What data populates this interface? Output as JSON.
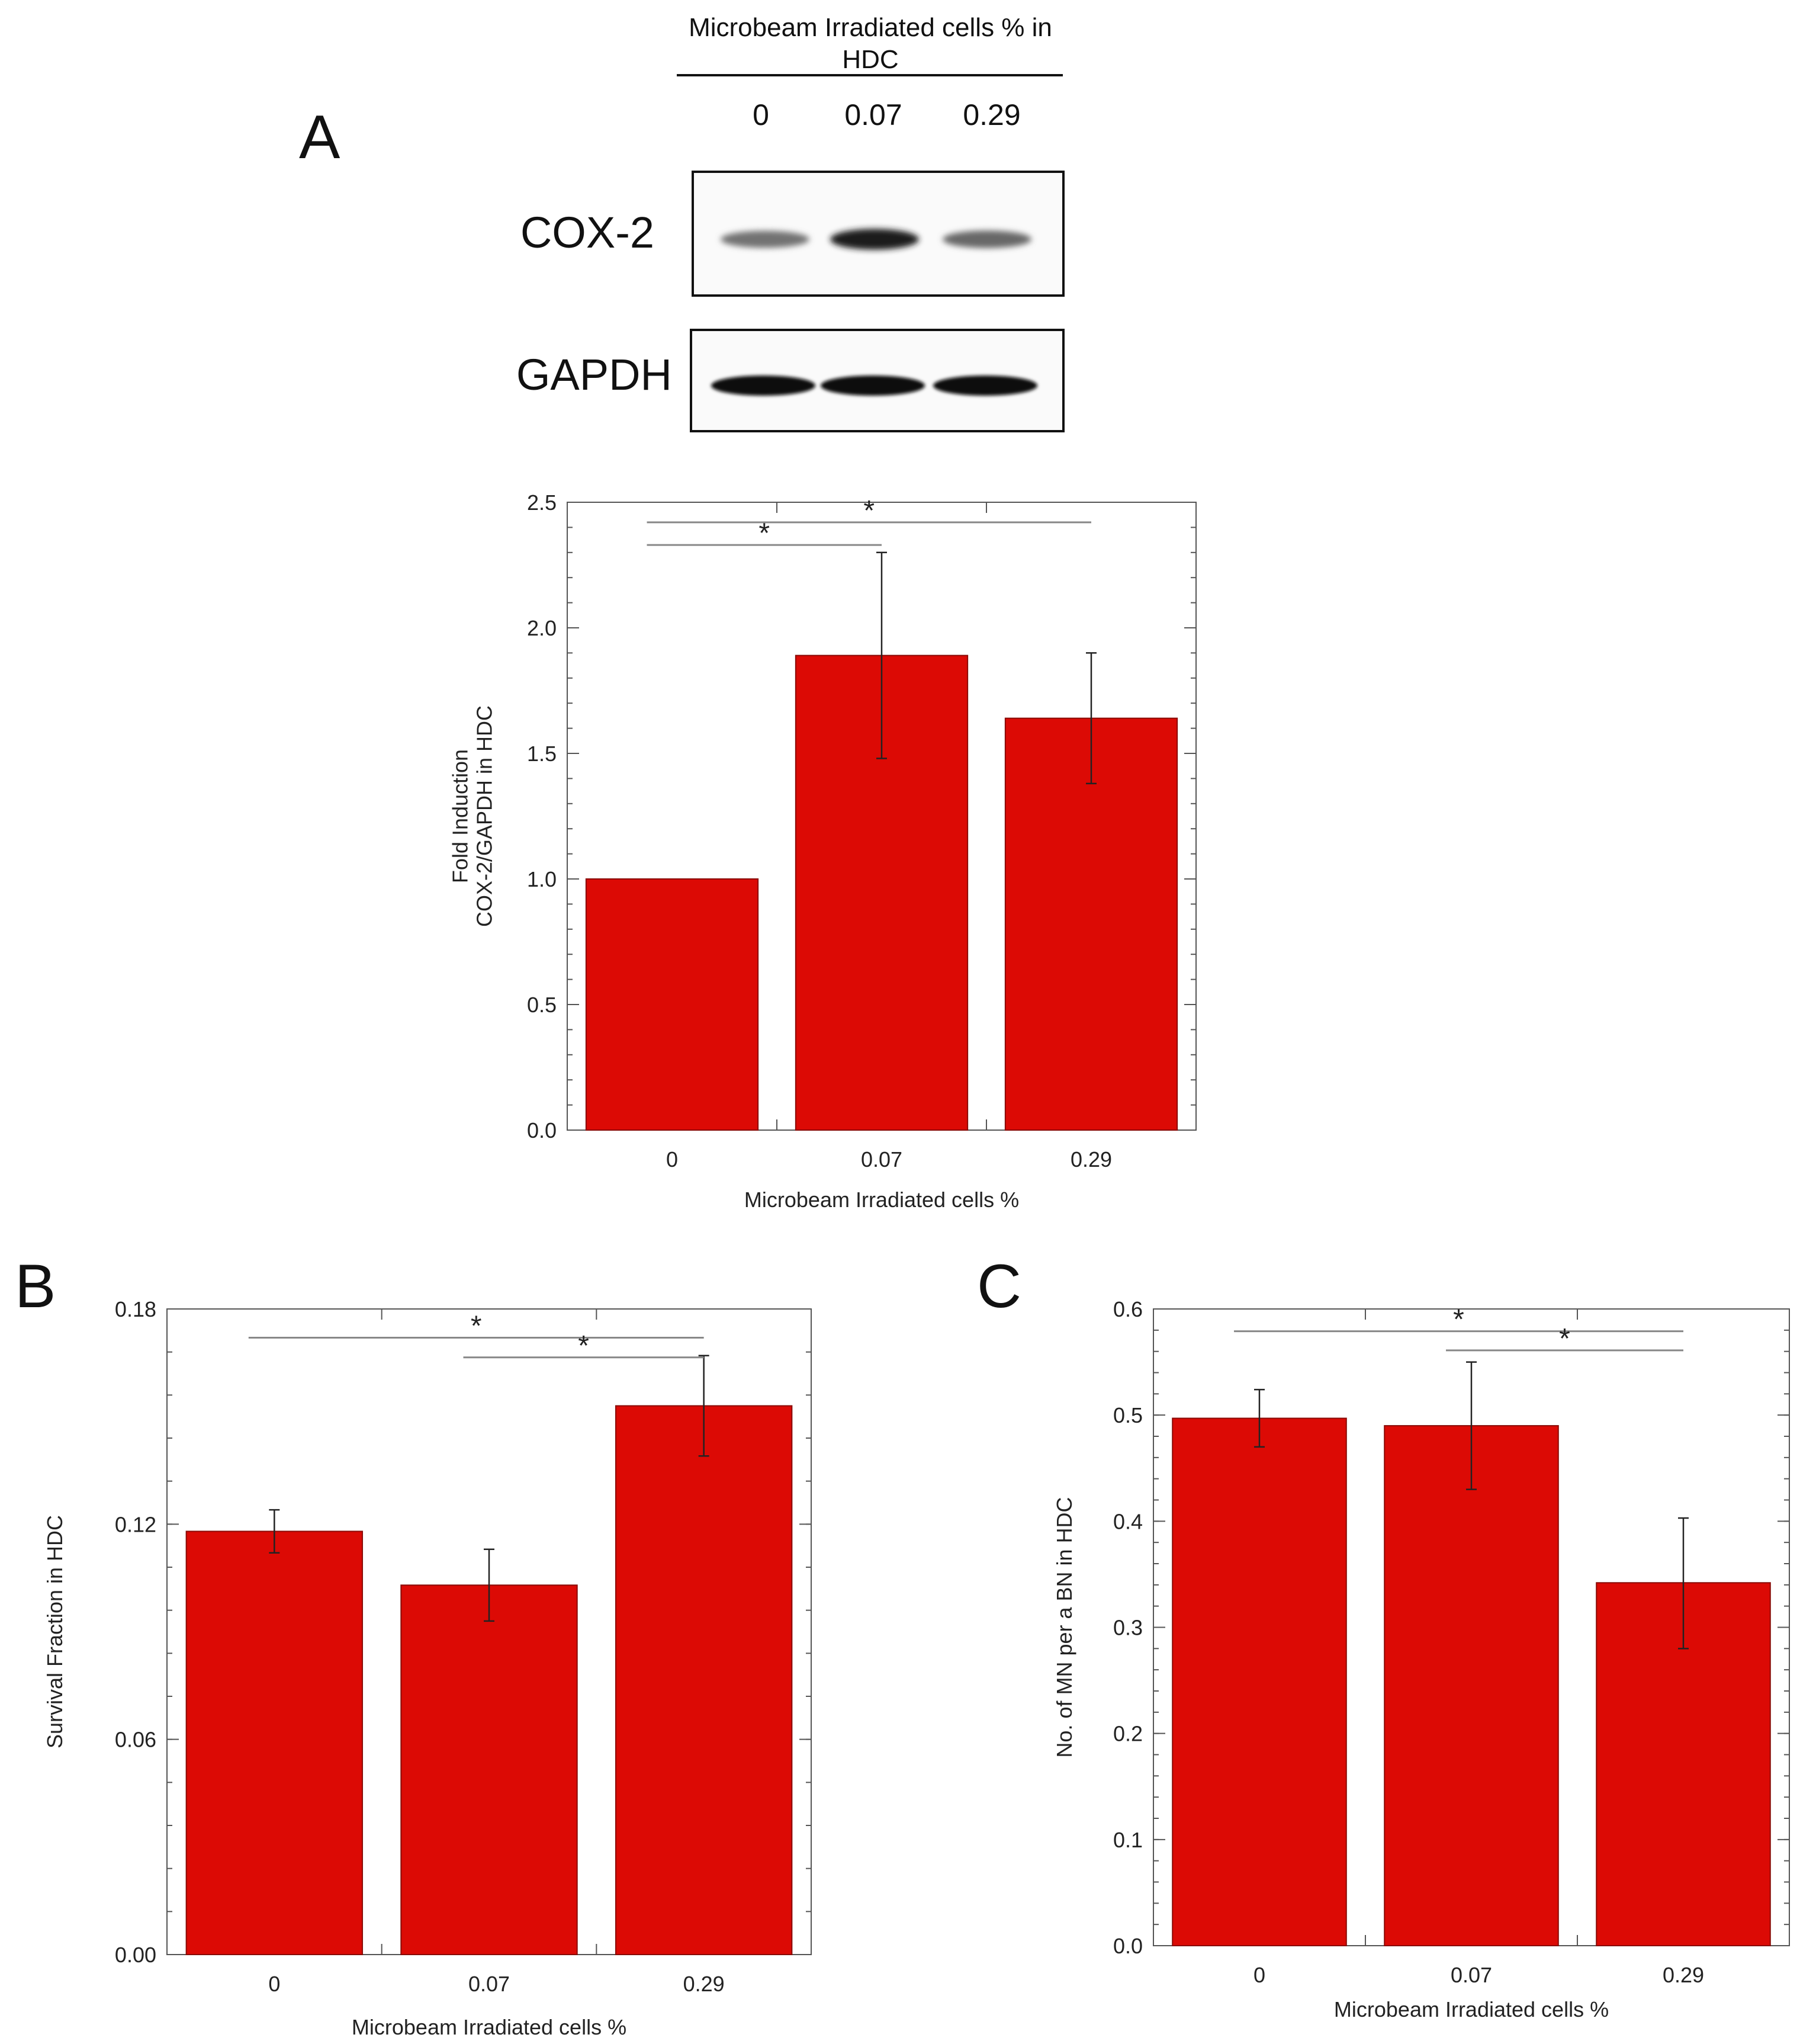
{
  "panels": {
    "a": "A",
    "b": "B",
    "c": "C"
  },
  "blot": {
    "header": "Microbeam Irradiated  cells % in HDC",
    "lanes": [
      "0",
      "0.07",
      "0.29"
    ],
    "bands": [
      "COX-2",
      "GAPDH"
    ],
    "cox2_intensity": [
      0.55,
      0.95,
      0.6
    ],
    "gapdh_intensity": [
      1.0,
      1.0,
      1.0
    ]
  },
  "chart_data": [
    {
      "id": "A",
      "type": "bar",
      "categories": [
        "0",
        "0.07",
        "0.29"
      ],
      "values": [
        1.0,
        1.89,
        1.64
      ],
      "errors_upper": [
        1.0,
        2.3,
        1.9
      ],
      "errors_lower": [
        1.0,
        1.48,
        1.38
      ],
      "xlabel": "Microbeam Irradiated cells %",
      "ylabel_lines": [
        "Fold Induction",
        "COX-2/GAPDH in HDC"
      ],
      "ylim": [
        0,
        2.5
      ],
      "yticks": [
        0.0,
        0.5,
        1.0,
        1.5,
        2.0,
        2.5
      ],
      "ytick_labels": [
        "0.0",
        "0.5",
        "1.0",
        "1.5",
        "2.0",
        "2.5"
      ],
      "bar_color": "#dc0a05",
      "significance": [
        {
          "from": 0,
          "to": 1,
          "y": 2.33,
          "label": "*"
        },
        {
          "from": 0,
          "to": 2,
          "y": 2.42,
          "label": "*"
        }
      ]
    },
    {
      "id": "B",
      "type": "bar",
      "categories": [
        "0",
        "0.07",
        "0.29"
      ],
      "values": [
        0.118,
        0.103,
        0.153
      ],
      "errors_upper": [
        0.124,
        0.113,
        0.167
      ],
      "errors_lower": [
        0.112,
        0.093,
        0.139
      ],
      "xlabel": "Microbeam Irradiated cells %",
      "ylabel_lines": [
        "Survival Fraction in HDC"
      ],
      "ylim": [
        0,
        0.18
      ],
      "yticks": [
        0.0,
        0.06,
        0.12,
        0.18
      ],
      "ytick_labels": [
        "0.00",
        "0.06",
        "0.12",
        "0.18"
      ],
      "bar_color": "#dc0a05",
      "significance": [
        {
          "from": 0,
          "to": 2,
          "y": 0.172,
          "label": "*"
        },
        {
          "from": 1,
          "to": 2,
          "y": 0.1665,
          "label": "*"
        }
      ]
    },
    {
      "id": "C",
      "type": "bar",
      "categories": [
        "0",
        "0.07",
        "0.29"
      ],
      "values": [
        0.497,
        0.49,
        0.342
      ],
      "errors_upper": [
        0.524,
        0.55,
        0.403
      ],
      "errors_lower": [
        0.47,
        0.43,
        0.28
      ],
      "xlabel": "Microbeam Irradiated cells %",
      "ylabel_lines": [
        "No. of MN per a BN in HDC"
      ],
      "ylim": [
        0,
        0.6
      ],
      "yticks": [
        0.0,
        0.1,
        0.2,
        0.3,
        0.4,
        0.5,
        0.6
      ],
      "ytick_labels": [
        "0.0",
        "0.1",
        "0.2",
        "0.3",
        "0.4",
        "0.5",
        "0.6"
      ],
      "bar_color": "#dc0a05",
      "significance": [
        {
          "from": 0,
          "to": 2,
          "y": 0.579,
          "label": "*"
        },
        {
          "from": 1,
          "to": 2,
          "y": 0.561,
          "label": "*"
        }
      ]
    }
  ]
}
